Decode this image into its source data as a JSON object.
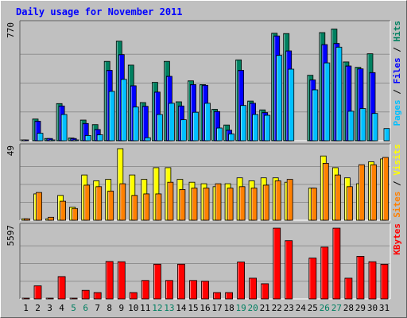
{
  "chart_data": {
    "type": "bar",
    "title": "Daily usage for November 2011",
    "categories": [
      "1",
      "2",
      "3",
      "4",
      "5",
      "6",
      "7",
      "8",
      "9",
      "10",
      "11",
      "12",
      "13",
      "14",
      "15",
      "16",
      "17",
      "18",
      "19",
      "20",
      "21",
      "22",
      "23",
      "24",
      "25",
      "26",
      "27",
      "28",
      "29",
      "30",
      "31"
    ],
    "weekend_days": [
      "5",
      "6",
      "12",
      "13",
      "19",
      "20",
      "26",
      "27"
    ],
    "panels": [
      {
        "id": "pages-files-hits",
        "axis_max_label": "770",
        "ylim": [
          0,
          770
        ],
        "side_labels": [
          {
            "text": "Pages",
            "color": "#00c0ff"
          },
          {
            "text": " / ",
            "color": "#000000"
          },
          {
            "text": "Files",
            "color": "#0000ff"
          },
          {
            "text": " / ",
            "color": "#000000"
          },
          {
            "text": "Hits",
            "color": "#008060"
          }
        ],
        "series": [
          {
            "name": "Hits",
            "color": "#008060",
            "values": [
              5,
              145,
              15,
              248,
              18,
              138,
              108,
              530,
              665,
              505,
              255,
              390,
              530,
              260,
              400,
              375,
              210,
              105,
              540,
              265,
              206,
              718,
              716,
              0,
              437,
              722,
              746,
              526,
              490,
              581,
              0
            ]
          },
          {
            "name": "Files",
            "color": "#0000ff",
            "values": [
              5,
              130,
              15,
              232,
              15,
              115,
              75,
              470,
              575,
              367,
              230,
              325,
              430,
              232,
              375,
              370,
              195,
              70,
              470,
              250,
              188,
              700,
              600,
              0,
              406,
              642,
              650,
              499,
              480,
              455,
              0
            ]
          },
          {
            "name": "Pages",
            "color": "#00c0ff",
            "values": [
              0,
              50,
              5,
              175,
              5,
              35,
              40,
              330,
              410,
              225,
              20,
              175,
              250,
              140,
              190,
              250,
              85,
              45,
              235,
              175,
              170,
              570,
              478,
              0,
              340,
              520,
              625,
              197,
              215,
              182,
              81
            ]
          }
        ]
      },
      {
        "id": "visits-sites",
        "axis_max_label": "49",
        "ylim": [
          0,
          49
        ],
        "side_labels": [
          {
            "text": "Sites",
            "color": "#ff8000"
          },
          {
            "text": " / ",
            "color": "#000000"
          },
          {
            "text": "Visits",
            "color": "#ffff00"
          }
        ],
        "series": [
          {
            "name": "Visits",
            "color": "#ffff00",
            "values": [
              1,
              18,
              1,
              17,
              9,
              31,
              27,
              28,
              49,
              31,
              28,
              36,
              36,
              28,
              26,
              25,
              23,
              25,
              29,
              27,
              29,
              29,
              26,
              0,
              22,
              44,
              36,
              29,
              25,
              40,
              42
            ]
          },
          {
            "name": "Sites",
            "color": "#ff8000",
            "values": [
              1,
              19,
              2,
              13,
              8,
              24,
              23,
              20,
              25,
              17,
              18,
              18,
              26,
              21,
              22,
              22,
              25,
              22,
              23,
              22,
              24,
              27,
              28,
              0,
              22,
              39,
              31,
              23,
              38,
              38,
              43
            ]
          }
        ]
      },
      {
        "id": "kbytes",
        "axis_max_label": "5597",
        "ylim": [
          0,
          5597
        ],
        "side_labels": [
          {
            "text": "KBytes",
            "color": "#ff0000"
          }
        ],
        "series": [
          {
            "name": "KBytes",
            "color": "#ff0000",
            "values": [
              40,
              1040,
              40,
              1770,
              50,
              680,
              500,
              2960,
              2940,
              500,
              1460,
              2750,
              1460,
              2750,
              1460,
              1400,
              500,
              500,
              2920,
              1640,
              1200,
              5597,
              4610,
              0,
              3230,
              4100,
              5597,
              1640,
              3370,
              2940,
              2740
            ]
          }
        ]
      }
    ]
  },
  "colors": {
    "background": "#c0c0c0",
    "plot_background": "#c0c0c0",
    "gridline": "#909090",
    "title": "#0000ff",
    "weekday_label": "#000000",
    "weekend_label": "#007f60"
  }
}
